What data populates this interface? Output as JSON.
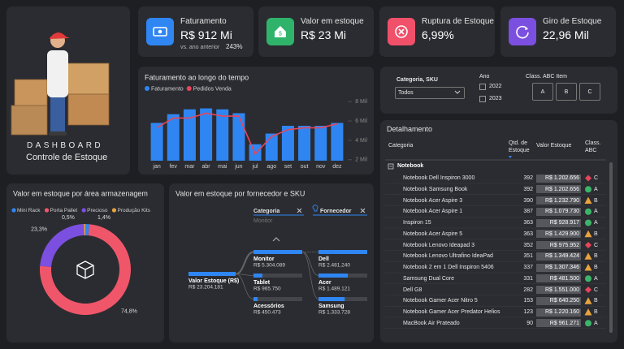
{
  "sidebar": {
    "title": "DASHBOARD",
    "subtitle": "Controle de Estoque"
  },
  "kpis": [
    {
      "label": "Faturamento",
      "value": "R$ 912 Mi",
      "note": "vs. ano anterior",
      "change": "243%",
      "color": "#2f86f2"
    },
    {
      "label": "Valor em estoque",
      "value": "R$ 23 Mi",
      "color": "#2fb36a"
    },
    {
      "label": "Ruptura de Estoque",
      "value": "6,99%",
      "color": "#f0506a"
    },
    {
      "label": "Giro de Estoque",
      "value": "22,96 Mil",
      "color": "#7b4fe0"
    }
  ],
  "chart_data": [
    {
      "type": "combo",
      "title": "Faturamento ao longo do tempo",
      "categories": [
        "jan",
        "fev",
        "mar",
        "abr",
        "mai",
        "jun",
        "jul",
        "ago",
        "set",
        "out",
        "nov",
        "dez"
      ],
      "series": [
        {
          "name": "Faturamento",
          "color": "#2f86f2",
          "kind": "bar",
          "values": [
            5800,
            6700,
            7200,
            7300,
            7200,
            6800,
            3600,
            4700,
            5500,
            5500,
            5500,
            5800
          ]
        },
        {
          "name": "Pedidos Venda",
          "color": "#e8455a",
          "kind": "line",
          "values": [
            5300,
            6300,
            6300,
            6800,
            6500,
            6500,
            2600,
            4400,
            5100,
            5300,
            5300,
            5700
          ]
        }
      ],
      "ylim": [
        1900,
        8600
      ],
      "yticks": [
        {
          "value": 2000,
          "label": "2 Mil"
        },
        {
          "value": 4000,
          "label": "4 Mil"
        },
        {
          "value": 6000,
          "label": "6 Mil"
        },
        {
          "value": 8000,
          "label": "8 Mil"
        }
      ]
    },
    {
      "type": "donut",
      "title": "Valor em estoque por área armazenagem",
      "categories": [
        "Mini Rack",
        "Porta Pallet",
        "Precioso",
        "Produção Kits"
      ],
      "values": [
        1.4,
        74.8,
        23.3,
        0.5
      ],
      "value_labels": [
        "1,4%",
        "74,8%",
        "23,3%",
        "0,5%"
      ],
      "colors": [
        "#2f86f2",
        "#f0566a",
        "#7b4fe0",
        "#e8a33d"
      ]
    }
  ],
  "filters": {
    "category_label": "Categoria, SKU",
    "category_value": "Todos",
    "year_label": "Ano",
    "years": [
      "2022",
      "2023"
    ],
    "abc_label": "Class. ABC Item",
    "abc_options": [
      "A",
      "B",
      "C"
    ]
  },
  "decomposition": {
    "title": "Valor em estoque por fornecedor e SKU",
    "headers": [
      {
        "label": "Categoria",
        "selected": "Monitor"
      },
      {
        "label": "Fornecedor"
      }
    ],
    "root": {
      "label": "Valor Estoque (R$)",
      "value": 23204181,
      "value_label": "R$ 23.204.181"
    },
    "level1": [
      {
        "label": "Monitor",
        "value": 5304089,
        "value_label": "R$ 5.304.089"
      },
      {
        "label": "Tablet",
        "value": 965750,
        "value_label": "R$ 965.750"
      },
      {
        "label": "Acessórios",
        "value": 450473,
        "value_label": "R$ 450.473"
      }
    ],
    "level2": [
      {
        "label": "Dell",
        "value": 2481240,
        "value_label": "R$ 2.481.240"
      },
      {
        "label": "Acer",
        "value": 1489121,
        "value_label": "R$ 1.489.121"
      },
      {
        "label": "Samsung",
        "value": 1333728,
        "value_label": "R$ 1.333.728"
      }
    ]
  },
  "table": {
    "title": "Detalhamento",
    "columns": [
      "Categoria",
      "Qtd. de Estoque",
      "Valor Estoque",
      "Class. ABC"
    ],
    "group": "Notebook",
    "class_colors": {
      "A": "#3cb56a",
      "B": "#e8a33d",
      "C": "#e8455a"
    },
    "rows": [
      [
        "Notebook Dell Inspiron 3000",
        "392",
        "R$ 1.202.656",
        "C"
      ],
      [
        "Notebook Samsung Book",
        "392",
        "R$ 1.202.656",
        "A"
      ],
      [
        "Notebook Acer Aspire 3",
        "390",
        "R$ 1.232.790",
        "B"
      ],
      [
        "Notebook Acer Aspire 1",
        "387",
        "R$ 1.079.730",
        "A"
      ],
      [
        "Inspiron 15",
        "363",
        "R$ 928.917",
        "A"
      ],
      [
        "Notebook Acer Aspire 5",
        "363",
        "R$ 1.429.900",
        "B"
      ],
      [
        "Notebook Lenovo Ideapad 3",
        "352",
        "R$ 975.952",
        "C"
      ],
      [
        "Notebook Lenovo Ultrafino IdeaPad",
        "351",
        "R$ 1.349.424",
        "B"
      ],
      [
        "Notebook 2 em 1 Dell Inspiron 5406",
        "337",
        "R$ 1.307.346",
        "B"
      ],
      [
        "Samsung Dual Core",
        "331",
        "R$ 481.500",
        "A"
      ],
      [
        "Dell G8",
        "282",
        "R$ 1.551.000",
        "C"
      ],
      [
        "Notebook Gamer Acer Nitro 5",
        "153",
        "R$ 640.250",
        "B"
      ],
      [
        "Notebook Gamer Acer Predator Helios",
        "123",
        "R$ 1.220.160",
        "B"
      ],
      [
        "MacBook Air Prateado",
        "90",
        "R$ 961.271",
        "A"
      ]
    ]
  }
}
